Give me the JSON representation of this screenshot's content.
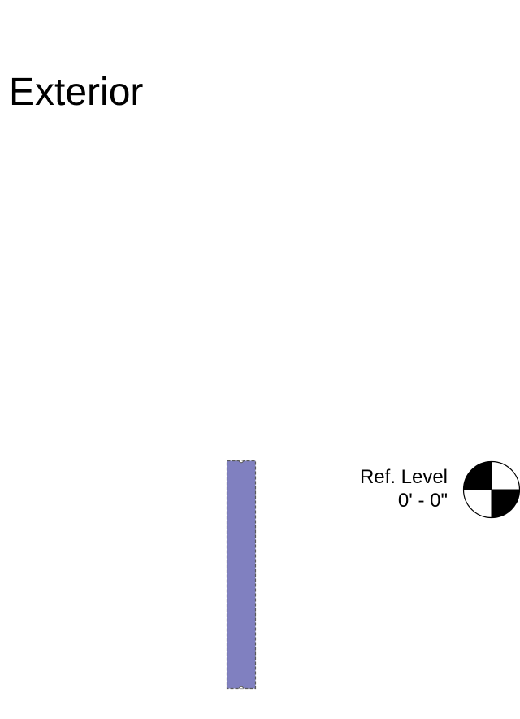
{
  "view": {
    "title": "Exterior"
  },
  "level": {
    "name": "Ref. Level",
    "elevation": "0' - 0\""
  },
  "colors": {
    "wall_fill": "#8080c0",
    "wall_outline": "#5a5a5a",
    "line": "#000000",
    "background": "#ffffff"
  }
}
